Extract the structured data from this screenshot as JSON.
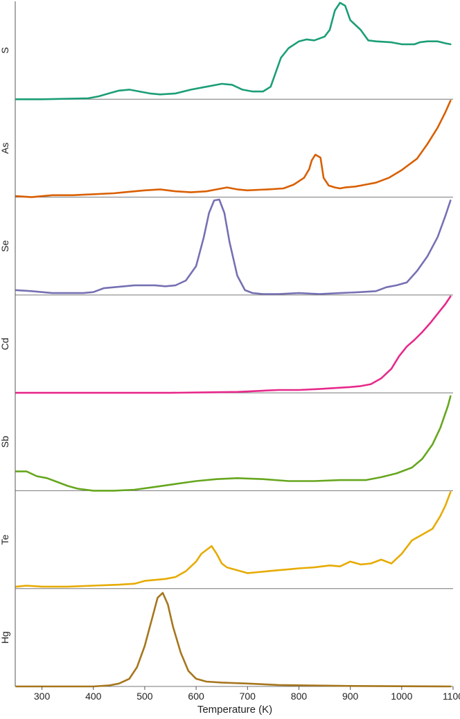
{
  "chart_data": {
    "type": "line",
    "layout": "stacked-panels",
    "xlabel": "Temperature (K)",
    "xlim": [
      248,
      1100
    ],
    "x_ticks": [
      300,
      400,
      500,
      600,
      700,
      800,
      900,
      1000,
      1100
    ],
    "grid": false,
    "legend": "none",
    "series": [
      {
        "name": "S",
        "color": "#1b9e77",
        "points": [
          [
            250,
            0
          ],
          [
            300,
            0
          ],
          [
            350,
            0.005
          ],
          [
            390,
            0.01
          ],
          [
            410,
            0.03
          ],
          [
            430,
            0.06
          ],
          [
            450,
            0.09
          ],
          [
            470,
            0.1
          ],
          [
            490,
            0.08
          ],
          [
            510,
            0.06
          ],
          [
            530,
            0.05
          ],
          [
            560,
            0.06
          ],
          [
            590,
            0.1
          ],
          [
            620,
            0.13
          ],
          [
            650,
            0.16
          ],
          [
            670,
            0.15
          ],
          [
            690,
            0.1
          ],
          [
            710,
            0.08
          ],
          [
            730,
            0.08
          ],
          [
            745,
            0.13
          ],
          [
            755,
            0.28
          ],
          [
            765,
            0.43
          ],
          [
            780,
            0.53
          ],
          [
            800,
            0.6
          ],
          [
            815,
            0.62
          ],
          [
            830,
            0.61
          ],
          [
            850,
            0.65
          ],
          [
            860,
            0.72
          ],
          [
            870,
            0.92
          ],
          [
            880,
            1
          ],
          [
            890,
            0.97
          ],
          [
            900,
            0.82
          ],
          [
            920,
            0.72
          ],
          [
            935,
            0.61
          ],
          [
            950,
            0.6
          ],
          [
            980,
            0.59
          ],
          [
            1000,
            0.57
          ],
          [
            1025,
            0.57
          ],
          [
            1035,
            0.59
          ],
          [
            1050,
            0.6
          ],
          [
            1070,
            0.6
          ],
          [
            1085,
            0.58
          ],
          [
            1095,
            0.57
          ]
        ]
      },
      {
        "name": "As",
        "color": "#d95f02",
        "points": [
          [
            250,
            0.01
          ],
          [
            280,
            0.0
          ],
          [
            320,
            0.02
          ],
          [
            360,
            0.02
          ],
          [
            400,
            0.03
          ],
          [
            440,
            0.04
          ],
          [
            460,
            0.05
          ],
          [
            480,
            0.06
          ],
          [
            500,
            0.07
          ],
          [
            530,
            0.08
          ],
          [
            560,
            0.06
          ],
          [
            590,
            0.05
          ],
          [
            620,
            0.06
          ],
          [
            650,
            0.09
          ],
          [
            660,
            0.1
          ],
          [
            680,
            0.08
          ],
          [
            700,
            0.07
          ],
          [
            740,
            0.08
          ],
          [
            770,
            0.09
          ],
          [
            790,
            0.13
          ],
          [
            810,
            0.2
          ],
          [
            820,
            0.29
          ],
          [
            825,
            0.38
          ],
          [
            832,
            0.44
          ],
          [
            842,
            0.41
          ],
          [
            848,
            0.2
          ],
          [
            858,
            0.12
          ],
          [
            870,
            0.1
          ],
          [
            880,
            0.09
          ],
          [
            890,
            0.1
          ],
          [
            910,
            0.11
          ],
          [
            930,
            0.13
          ],
          [
            950,
            0.15
          ],
          [
            975,
            0.2
          ],
          [
            1000,
            0.28
          ],
          [
            1030,
            0.4
          ],
          [
            1050,
            0.55
          ],
          [
            1070,
            0.72
          ],
          [
            1085,
            0.88
          ],
          [
            1095,
            1
          ]
        ]
      },
      {
        "name": "Se",
        "color": "#7570b3",
        "points": [
          [
            250,
            0.05
          ],
          [
            280,
            0.04
          ],
          [
            320,
            0.02
          ],
          [
            350,
            0.02
          ],
          [
            380,
            0.02
          ],
          [
            400,
            0.03
          ],
          [
            420,
            0.07
          ],
          [
            440,
            0.08
          ],
          [
            460,
            0.09
          ],
          [
            480,
            0.1
          ],
          [
            500,
            0.1
          ],
          [
            520,
            0.1
          ],
          [
            540,
            0.09
          ],
          [
            560,
            0.1
          ],
          [
            580,
            0.15
          ],
          [
            600,
            0.3
          ],
          [
            615,
            0.6
          ],
          [
            625,
            0.85
          ],
          [
            635,
            0.98
          ],
          [
            645,
            0.99
          ],
          [
            655,
            0.85
          ],
          [
            665,
            0.55
          ],
          [
            680,
            0.2
          ],
          [
            695,
            0.05
          ],
          [
            710,
            0.02
          ],
          [
            730,
            0.01
          ],
          [
            760,
            0.01
          ],
          [
            800,
            0.02
          ],
          [
            840,
            0.01
          ],
          [
            880,
            0.02
          ],
          [
            920,
            0.03
          ],
          [
            950,
            0.04
          ],
          [
            970,
            0.08
          ],
          [
            990,
            0.1
          ],
          [
            1010,
            0.13
          ],
          [
            1030,
            0.25
          ],
          [
            1050,
            0.4
          ],
          [
            1070,
            0.6
          ],
          [
            1085,
            0.82
          ],
          [
            1095,
            0.98
          ]
        ]
      },
      {
        "name": "Cd",
        "color": "#e7298a",
        "points": [
          [
            250,
            0
          ],
          [
            350,
            0
          ],
          [
            450,
            0
          ],
          [
            550,
            0
          ],
          [
            620,
            0.005
          ],
          [
            680,
            0.01
          ],
          [
            720,
            0.02
          ],
          [
            760,
            0.03
          ],
          [
            800,
            0.03
          ],
          [
            840,
            0.04
          ],
          [
            870,
            0.05
          ],
          [
            900,
            0.06
          ],
          [
            920,
            0.07
          ],
          [
            940,
            0.09
          ],
          [
            960,
            0.15
          ],
          [
            980,
            0.25
          ],
          [
            995,
            0.38
          ],
          [
            1010,
            0.48
          ],
          [
            1025,
            0.55
          ],
          [
            1040,
            0.63
          ],
          [
            1055,
            0.72
          ],
          [
            1070,
            0.82
          ],
          [
            1085,
            0.92
          ],
          [
            1095,
            1
          ]
        ]
      },
      {
        "name": "Sb",
        "color": "#66a61e",
        "points": [
          [
            250,
            0.2
          ],
          [
            270,
            0.2
          ],
          [
            290,
            0.15
          ],
          [
            310,
            0.13
          ],
          [
            330,
            0.09
          ],
          [
            350,
            0.05
          ],
          [
            370,
            0.02
          ],
          [
            400,
            0.0
          ],
          [
            440,
            0.0
          ],
          [
            480,
            0.01
          ],
          [
            520,
            0.04
          ],
          [
            560,
            0.07
          ],
          [
            600,
            0.1
          ],
          [
            640,
            0.12
          ],
          [
            680,
            0.13
          ],
          [
            730,
            0.12
          ],
          [
            780,
            0.1
          ],
          [
            830,
            0.1
          ],
          [
            880,
            0.11
          ],
          [
            930,
            0.11
          ],
          [
            960,
            0.14
          ],
          [
            990,
            0.18
          ],
          [
            1020,
            0.24
          ],
          [
            1040,
            0.33
          ],
          [
            1060,
            0.48
          ],
          [
            1075,
            0.65
          ],
          [
            1090,
            0.88
          ],
          [
            1095,
            0.98
          ]
        ]
      },
      {
        "name": "Te",
        "color": "#e6ab02",
        "points": [
          [
            250,
            0.02
          ],
          [
            270,
            0.03
          ],
          [
            300,
            0.02
          ],
          [
            350,
            0.02
          ],
          [
            400,
            0.03
          ],
          [
            450,
            0.04
          ],
          [
            480,
            0.05
          ],
          [
            500,
            0.08
          ],
          [
            520,
            0.09
          ],
          [
            540,
            0.1
          ],
          [
            560,
            0.12
          ],
          [
            580,
            0.18
          ],
          [
            600,
            0.28
          ],
          [
            610,
            0.36
          ],
          [
            620,
            0.4
          ],
          [
            630,
            0.44
          ],
          [
            640,
            0.36
          ],
          [
            650,
            0.26
          ],
          [
            660,
            0.22
          ],
          [
            680,
            0.19
          ],
          [
            700,
            0.16
          ],
          [
            720,
            0.17
          ],
          [
            740,
            0.18
          ],
          [
            760,
            0.19
          ],
          [
            780,
            0.2
          ],
          [
            800,
            0.21
          ],
          [
            830,
            0.22
          ],
          [
            860,
            0.24
          ],
          [
            880,
            0.23
          ],
          [
            900,
            0.28
          ],
          [
            920,
            0.25
          ],
          [
            940,
            0.26
          ],
          [
            960,
            0.3
          ],
          [
            980,
            0.26
          ],
          [
            1000,
            0.36
          ],
          [
            1020,
            0.5
          ],
          [
            1040,
            0.56
          ],
          [
            1060,
            0.62
          ],
          [
            1075,
            0.75
          ],
          [
            1085,
            0.86
          ],
          [
            1095,
            1
          ]
        ]
      },
      {
        "name": "Hg",
        "color": "#a6761d",
        "points": [
          [
            250,
            0
          ],
          [
            350,
            0
          ],
          [
            400,
            0
          ],
          [
            430,
            0.01
          ],
          [
            450,
            0.03
          ],
          [
            470,
            0.08
          ],
          [
            485,
            0.2
          ],
          [
            500,
            0.42
          ],
          [
            515,
            0.72
          ],
          [
            525,
            0.92
          ],
          [
            535,
            0.97
          ],
          [
            545,
            0.85
          ],
          [
            555,
            0.62
          ],
          [
            570,
            0.35
          ],
          [
            585,
            0.16
          ],
          [
            600,
            0.08
          ],
          [
            620,
            0.05
          ],
          [
            650,
            0.04
          ],
          [
            700,
            0.03
          ],
          [
            760,
            0.015
          ],
          [
            820,
            0.01
          ],
          [
            900,
            0.005
          ],
          [
            1000,
            0.002
          ],
          [
            1095,
            0
          ]
        ]
      }
    ]
  }
}
